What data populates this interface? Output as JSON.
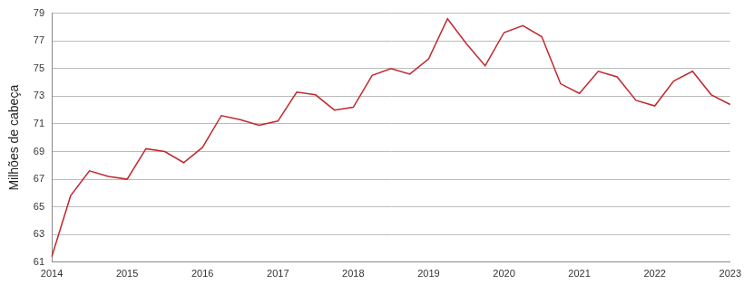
{
  "chart_data": {
    "type": "line",
    "y_label": "Milhões de cabeça",
    "categories": [
      "2014",
      null,
      null,
      null,
      "2015",
      null,
      null,
      null,
      "2016",
      null,
      null,
      null,
      "2017",
      null,
      null,
      null,
      "2018",
      null,
      null,
      null,
      "2019",
      null,
      null,
      null,
      "2020",
      null,
      null,
      null,
      "2021",
      null,
      null,
      null,
      "2022",
      null,
      null,
      null,
      "2023"
    ],
    "values": [
      61.4,
      65.8,
      67.6,
      67.2,
      67.0,
      69.2,
      69.0,
      68.2,
      69.3,
      71.6,
      71.3,
      70.9,
      71.2,
      73.3,
      73.1,
      72.0,
      72.2,
      74.5,
      75.0,
      74.6,
      75.7,
      78.6,
      76.8,
      75.2,
      77.6,
      78.1,
      77.3,
      73.9,
      73.2,
      74.8,
      74.4,
      72.7,
      72.3,
      74.1,
      74.8,
      73.1,
      72.4
    ],
    "color": "#c0282d",
    "ylim": [
      61,
      79
    ],
    "yticks": [
      61,
      63,
      65,
      67,
      69,
      71,
      73,
      75,
      77,
      79
    ],
    "grid": true
  }
}
